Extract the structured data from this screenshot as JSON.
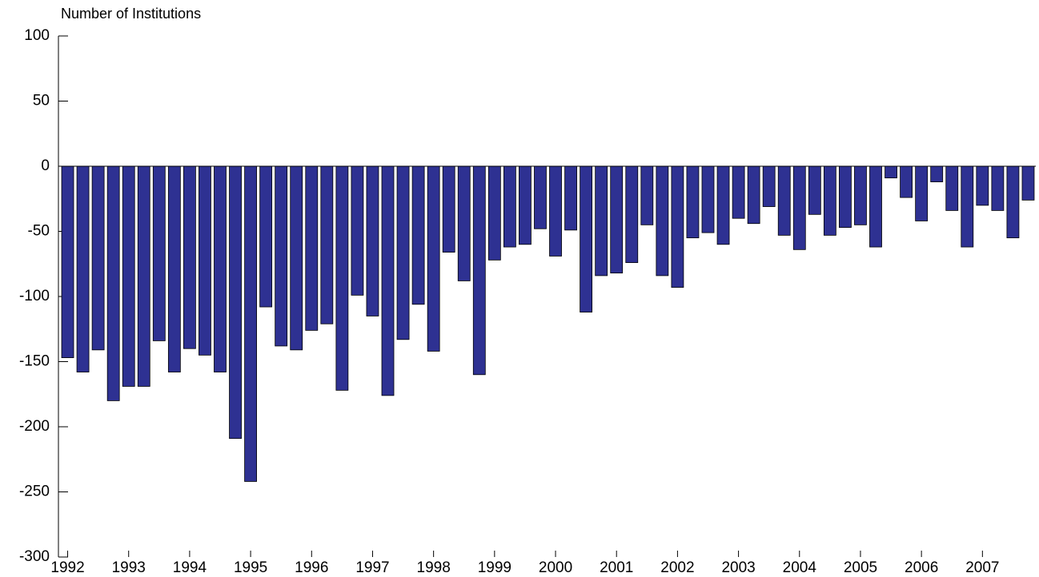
{
  "chart_data": {
    "type": "bar",
    "title": "Number of Institutions",
    "categories": [
      "1992",
      null,
      null,
      null,
      "1993",
      null,
      null,
      null,
      "1994",
      null,
      null,
      null,
      "1995",
      null,
      null,
      null,
      "1996",
      null,
      null,
      null,
      "1997",
      null,
      null,
      null,
      "1998",
      null,
      null,
      null,
      "1999",
      null,
      null,
      null,
      "2000",
      null,
      null,
      null,
      "2001",
      null,
      null,
      null,
      "2002",
      null,
      null,
      null,
      "2003",
      null,
      null,
      null,
      "2004",
      null,
      null,
      null,
      "2005",
      null,
      null,
      null,
      "2006",
      null,
      null,
      null,
      "2007",
      null,
      null,
      null
    ],
    "values": [
      -147,
      -158,
      -141,
      -180,
      -169,
      -169,
      -134,
      -158,
      -140,
      -145,
      -158,
      -209,
      -242,
      -108,
      -138,
      -141,
      -126,
      -121,
      -172,
      -99,
      -115,
      -176,
      -133,
      -106,
      -142,
      -66,
      -88,
      -160,
      -72,
      -62,
      -60,
      -48,
      -69,
      -49,
      -112,
      -84,
      -82,
      -74,
      -45,
      -84,
      -93,
      -55,
      -51,
      -60,
      -40,
      -44,
      -31,
      -53,
      -64,
      -37,
      -53,
      -47,
      -45,
      -62,
      -9,
      -24,
      -42,
      -12,
      -34,
      -62,
      -30,
      -34,
      -55,
      -26
    ],
    "color": "#2e3192",
    "ylim": [
      -300,
      100
    ],
    "yticks": [
      -300,
      -250,
      -200,
      -150,
      -100,
      -50,
      0,
      50,
      100
    ]
  }
}
